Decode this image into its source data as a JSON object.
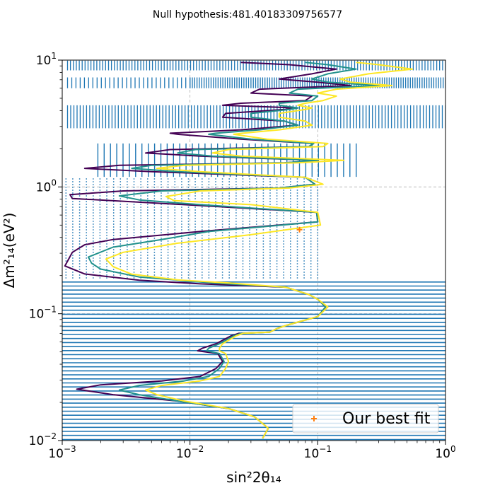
{
  "chart_data": {
    "type": "contour",
    "title": "Null hypothesis:481.40183309756577",
    "xlabel": "sin²2θ₁₄",
    "ylabel": "Δm²₁₄(eV²)",
    "xscale": "log",
    "yscale": "log",
    "xlim": [
      0.001,
      1
    ],
    "ylim": [
      0.01,
      10
    ],
    "x_tick_labels": [
      "10",
      "10",
      "10",
      "10"
    ],
    "x_tick_exponents": [
      "−3",
      "−2",
      "−1",
      "0"
    ],
    "x_tick_values": [
      0.001,
      0.01,
      0.1,
      1
    ],
    "y_tick_labels": [
      "10",
      "10",
      "10",
      "10"
    ],
    "y_tick_exponents": [
      "−2",
      "−1",
      "0",
      "1"
    ],
    "y_tick_values": [
      0.01,
      0.1,
      1,
      10
    ],
    "grid": true,
    "legend": {
      "position": "lower-right",
      "entries": [
        {
          "label": "Our best fit",
          "marker": "+",
          "color": "#ff7f0e"
        }
      ]
    },
    "best_fit": {
      "x": 0.072,
      "y": 0.46
    },
    "scan_points_color": "#1f77b4",
    "series": [
      {
        "color": "#440154",
        "points": [
          [
            0.037,
            0.0104
          ],
          [
            0.041,
            0.0125
          ],
          [
            0.032,
            0.0154
          ],
          [
            0.02,
            0.0179
          ],
          [
            0.008,
            0.0205
          ],
          [
            0.0025,
            0.023
          ],
          [
            0.0013,
            0.0254
          ],
          [
            0.002,
            0.0275
          ],
          [
            0.006,
            0.0295
          ],
          [
            0.012,
            0.032
          ],
          [
            0.016,
            0.037
          ],
          [
            0.018,
            0.042
          ],
          [
            0.0165,
            0.0485
          ],
          [
            0.0115,
            0.051
          ],
          [
            0.0125,
            0.0535
          ],
          [
            0.016,
            0.058
          ],
          [
            0.021,
            0.067
          ],
          [
            0.024,
            0.07
          ],
          [
            0.042,
            0.0716
          ],
          [
            0.049,
            0.077
          ],
          [
            0.058,
            0.0815
          ],
          [
            0.1,
            0.095
          ],
          [
            0.115,
            0.113
          ],
          [
            0.1,
            0.13
          ],
          [
            0.085,
            0.142
          ],
          [
            0.056,
            0.162
          ],
          [
            0.012,
            0.172
          ],
          [
            0.004,
            0.184
          ],
          [
            0.0015,
            0.206
          ],
          [
            0.00105,
            0.238
          ],
          [
            0.0012,
            0.305
          ],
          [
            0.0015,
            0.35
          ],
          [
            0.0025,
            0.385
          ],
          [
            0.012,
            0.445
          ],
          [
            0.1,
            0.53
          ],
          [
            0.098,
            0.63
          ],
          [
            0.009,
            0.725
          ],
          [
            0.0012,
            0.81
          ],
          [
            0.00115,
            0.87
          ],
          [
            0.003,
            0.93
          ],
          [
            0.05,
            0.98
          ],
          [
            0.095,
            1.05
          ],
          [
            0.08,
            1.19
          ],
          [
            0.005,
            1.32
          ],
          [
            0.0015,
            1.4
          ],
          [
            0.0028,
            1.48
          ],
          [
            0.055,
            1.55
          ],
          [
            0.1,
            1.62
          ],
          [
            0.012,
            1.75
          ],
          [
            0.0045,
            1.85
          ],
          [
            0.007,
            1.97
          ],
          [
            0.085,
            2.08
          ],
          [
            0.093,
            2.2
          ],
          [
            0.025,
            2.38
          ],
          [
            0.008,
            2.6
          ],
          [
            0.007,
            2.65
          ],
          [
            0.025,
            2.82
          ],
          [
            0.07,
            3.07
          ],
          [
            0.055,
            3.3
          ],
          [
            0.018,
            3.55
          ],
          [
            0.019,
            3.8
          ],
          [
            0.055,
            4.08
          ],
          [
            0.07,
            4.2
          ],
          [
            0.018,
            4.4
          ],
          [
            0.025,
            4.57
          ],
          [
            0.08,
            4.8
          ],
          [
            0.09,
            5.2
          ],
          [
            0.03,
            5.5
          ],
          [
            0.035,
            5.9
          ],
          [
            0.18,
            6.3
          ],
          [
            0.1,
            6.7
          ],
          [
            0.05,
            7.1
          ],
          [
            0.09,
            7.8
          ],
          [
            0.14,
            8.5
          ],
          [
            0.06,
            9.2
          ],
          [
            0.025,
            9.6
          ]
        ]
      },
      {
        "color": "#21918c",
        "points": [
          [
            0.037,
            0.0104
          ],
          [
            0.041,
            0.0125
          ],
          [
            0.032,
            0.0154
          ],
          [
            0.02,
            0.0179
          ],
          [
            0.008,
            0.0205
          ],
          [
            0.004,
            0.023
          ],
          [
            0.0028,
            0.025
          ],
          [
            0.004,
            0.0272
          ],
          [
            0.009,
            0.0295
          ],
          [
            0.014,
            0.032
          ],
          [
            0.017,
            0.037
          ],
          [
            0.0185,
            0.042
          ],
          [
            0.017,
            0.0485
          ],
          [
            0.0135,
            0.051
          ],
          [
            0.014,
            0.0535
          ],
          [
            0.017,
            0.058
          ],
          [
            0.022,
            0.067
          ],
          [
            0.025,
            0.07
          ],
          [
            0.042,
            0.0716
          ],
          [
            0.049,
            0.077
          ],
          [
            0.058,
            0.0815
          ],
          [
            0.1,
            0.095
          ],
          [
            0.115,
            0.113
          ],
          [
            0.1,
            0.13
          ],
          [
            0.085,
            0.142
          ],
          [
            0.056,
            0.162
          ],
          [
            0.015,
            0.175
          ],
          [
            0.004,
            0.195
          ],
          [
            0.002,
            0.225
          ],
          [
            0.0017,
            0.25
          ],
          [
            0.0016,
            0.28
          ],
          [
            0.0025,
            0.335
          ],
          [
            0.006,
            0.385
          ],
          [
            0.014,
            0.445
          ],
          [
            0.1,
            0.53
          ],
          [
            0.098,
            0.63
          ],
          [
            0.012,
            0.725
          ],
          [
            0.004,
            0.79
          ],
          [
            0.0028,
            0.85
          ],
          [
            0.006,
            0.93
          ],
          [
            0.05,
            0.98
          ],
          [
            0.095,
            1.05
          ],
          [
            0.08,
            1.19
          ],
          [
            0.008,
            1.32
          ],
          [
            0.0035,
            1.4
          ],
          [
            0.005,
            1.48
          ],
          [
            0.055,
            1.55
          ],
          [
            0.1,
            1.62
          ],
          [
            0.015,
            1.75
          ],
          [
            0.008,
            1.85
          ],
          [
            0.011,
            1.97
          ],
          [
            0.085,
            2.08
          ],
          [
            0.093,
            2.2
          ],
          [
            0.03,
            2.38
          ],
          [
            0.014,
            2.6
          ],
          [
            0.016,
            2.65
          ],
          [
            0.035,
            2.82
          ],
          [
            0.07,
            3.07
          ],
          [
            0.055,
            3.3
          ],
          [
            0.03,
            3.55
          ],
          [
            0.03,
            3.8
          ],
          [
            0.06,
            4.08
          ],
          [
            0.07,
            4.2
          ],
          [
            0.05,
            4.4
          ],
          [
            0.05,
            4.57
          ],
          [
            0.09,
            4.8
          ],
          [
            0.1,
            5.2
          ],
          [
            0.06,
            5.5
          ],
          [
            0.07,
            5.9
          ],
          [
            0.3,
            6.3
          ],
          [
            0.12,
            6.7
          ],
          [
            0.09,
            7.1
          ],
          [
            0.12,
            7.8
          ],
          [
            0.2,
            8.5
          ],
          [
            0.12,
            9.2
          ],
          [
            0.08,
            9.6
          ]
        ]
      },
      {
        "color": "#fde725",
        "points": [
          [
            0.037,
            0.0104
          ],
          [
            0.041,
            0.0125
          ],
          [
            0.032,
            0.0154
          ],
          [
            0.02,
            0.0179
          ],
          [
            0.009,
            0.0205
          ],
          [
            0.0055,
            0.023
          ],
          [
            0.0045,
            0.025
          ],
          [
            0.006,
            0.0272
          ],
          [
            0.012,
            0.0295
          ],
          [
            0.017,
            0.032
          ],
          [
            0.019,
            0.037
          ],
          [
            0.02,
            0.042
          ],
          [
            0.019,
            0.0485
          ],
          [
            0.017,
            0.051
          ],
          [
            0.017,
            0.0535
          ],
          [
            0.018,
            0.058
          ],
          [
            0.023,
            0.067
          ],
          [
            0.026,
            0.07
          ],
          [
            0.042,
            0.0716
          ],
          [
            0.049,
            0.077
          ],
          [
            0.058,
            0.0815
          ],
          [
            0.1,
            0.095
          ],
          [
            0.12,
            0.113
          ],
          [
            0.1,
            0.13
          ],
          [
            0.085,
            0.142
          ],
          [
            0.056,
            0.162
          ],
          [
            0.02,
            0.175
          ],
          [
            0.008,
            0.185
          ],
          [
            0.0035,
            0.205
          ],
          [
            0.0025,
            0.235
          ],
          [
            0.0022,
            0.27
          ],
          [
            0.003,
            0.305
          ],
          [
            0.008,
            0.36
          ],
          [
            0.03,
            0.42
          ],
          [
            0.105,
            0.5
          ],
          [
            0.1,
            0.63
          ],
          [
            0.03,
            0.725
          ],
          [
            0.0075,
            0.78
          ],
          [
            0.0065,
            0.84
          ],
          [
            0.012,
            0.93
          ],
          [
            0.06,
            0.98
          ],
          [
            0.11,
            1.05
          ],
          [
            0.08,
            1.19
          ],
          [
            0.012,
            1.32
          ],
          [
            0.0055,
            1.4
          ],
          [
            0.009,
            1.48
          ],
          [
            0.07,
            1.55
          ],
          [
            0.16,
            1.62
          ],
          [
            0.025,
            1.75
          ],
          [
            0.015,
            1.85
          ],
          [
            0.02,
            1.97
          ],
          [
            0.11,
            2.08
          ],
          [
            0.12,
            2.2
          ],
          [
            0.04,
            2.38
          ],
          [
            0.022,
            2.6
          ],
          [
            0.026,
            2.65
          ],
          [
            0.05,
            2.82
          ],
          [
            0.09,
            3.07
          ],
          [
            0.08,
            3.3
          ],
          [
            0.05,
            3.55
          ],
          [
            0.05,
            3.8
          ],
          [
            0.08,
            4.08
          ],
          [
            0.09,
            4.2
          ],
          [
            0.07,
            4.4
          ],
          [
            0.08,
            4.57
          ],
          [
            0.11,
            4.8
          ],
          [
            0.14,
            5.2
          ],
          [
            0.1,
            5.5
          ],
          [
            0.14,
            5.9
          ],
          [
            0.38,
            6.3
          ],
          [
            0.18,
            6.7
          ],
          [
            0.15,
            7.1
          ],
          [
            0.25,
            7.8
          ],
          [
            0.55,
            8.5
          ],
          [
            0.3,
            9.2
          ],
          [
            0.2,
            9.6
          ]
        ]
      }
    ]
  }
}
